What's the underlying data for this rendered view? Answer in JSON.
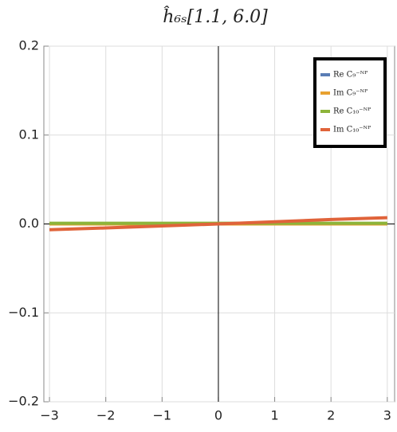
{
  "chart_data": {
    "type": "line",
    "title": "ĥ₆ₛ[1.1, 6.0]",
    "x": [
      -3,
      -2,
      -1,
      0,
      1,
      2,
      3
    ],
    "series": [
      {
        "name": "Re C₉⁻ᴺᴾ",
        "color": "#5a7db5",
        "values": [
          0,
          0,
          0,
          0,
          0,
          0,
          0
        ]
      },
      {
        "name": "Im C₉⁻ᴺᴾ",
        "color": "#e8a130",
        "values": [
          0,
          0,
          0,
          0,
          0,
          0,
          0
        ]
      },
      {
        "name": "Re C₁₀⁻ᴺᴾ",
        "color": "#8db43a",
        "values": [
          0.0008,
          0.0008,
          0.0008,
          0.0008,
          0.0008,
          0.0008,
          0.0008
        ]
      },
      {
        "name": "Im C₁₀⁻ᴺᴾ",
        "color": "#e0633a",
        "values": [
          -0.0065,
          -0.0045,
          -0.0022,
          0,
          0.0025,
          0.005,
          0.007
        ]
      }
    ],
    "xlim": [
      -3.1,
      3.13
    ],
    "ylim": [
      -0.2,
      0.2
    ],
    "xticks": [
      {
        "value": -3,
        "label": "−3"
      },
      {
        "value": -2,
        "label": "−2"
      },
      {
        "value": -1,
        "label": "−1"
      },
      0,
      1,
      2,
      3
    ],
    "yticks": [
      {
        "value": -0.2,
        "label": "−0.2"
      },
      {
        "value": -0.1,
        "label": "−0.1"
      },
      {
        "value": 0,
        "label": "0.0"
      },
      0.1,
      0.2
    ],
    "grid": true,
    "legend": "upper right"
  }
}
